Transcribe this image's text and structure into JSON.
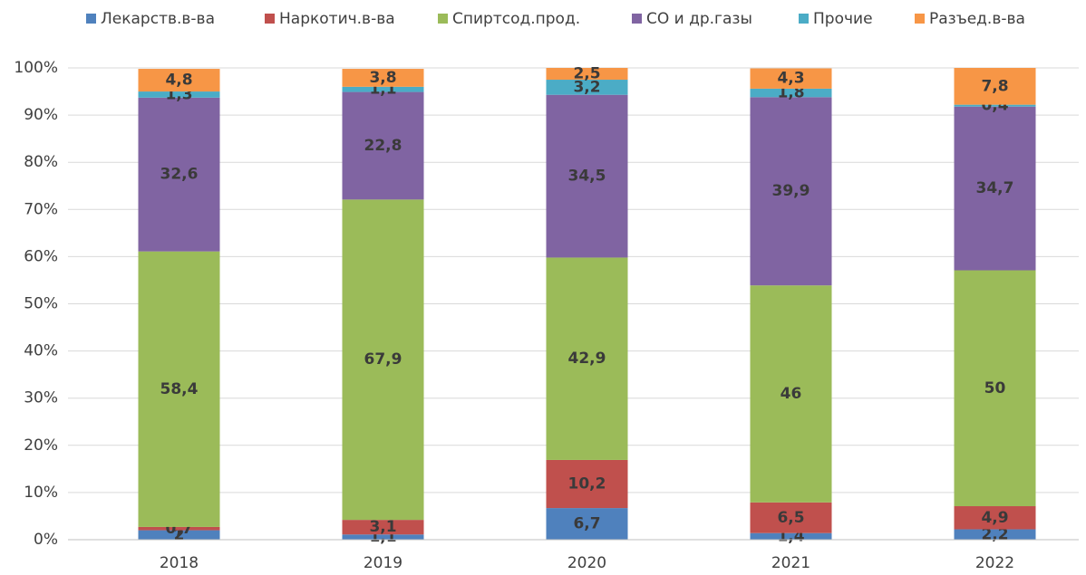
{
  "chart_data": {
    "type": "stacked_bar",
    "categories": [
      "2018",
      "2019",
      "2020",
      "2021",
      "2022"
    ],
    "series": [
      {
        "name": "Лекарств.в-ва",
        "color": "#4f81bd",
        "values": [
          2,
          1.1,
          6.7,
          1.4,
          2.2
        ],
        "value_labels": [
          "2",
          "1,1",
          "6,7",
          "1,4",
          "2,2"
        ]
      },
      {
        "name": "Наркотич.в-ва",
        "color": "#c0504d",
        "values": [
          0.7,
          3.1,
          10.2,
          6.5,
          4.9
        ],
        "value_labels": [
          "0,7",
          "3,1",
          "10,2",
          "6,5",
          "4,9"
        ]
      },
      {
        "name": "Спиртсод.прод.",
        "color": "#9bbb59",
        "values": [
          58.4,
          67.9,
          42.9,
          46,
          50
        ],
        "value_labels": [
          "58,4",
          "67,9",
          "42,9",
          "46",
          "50"
        ]
      },
      {
        "name": "СО и др.газы",
        "color": "#8064a2",
        "values": [
          32.6,
          22.8,
          34.5,
          39.9,
          34.7
        ],
        "value_labels": [
          "32,6",
          "22,8",
          "34,5",
          "39,9",
          "34,7"
        ]
      },
      {
        "name": "Прочие",
        "color": "#4bacc6",
        "values": [
          1.3,
          1.1,
          3.2,
          1.8,
          0.4
        ],
        "value_labels": [
          "1,3",
          "1,1",
          "3,2",
          "1,8",
          "0,4"
        ]
      },
      {
        "name": "Разъед.в-ва",
        "color": "#f79646",
        "values": [
          4.8,
          3.8,
          2.5,
          4.3,
          7.8
        ],
        "value_labels": [
          "4,8",
          "3,8",
          "2,5",
          "4,3",
          "7,8"
        ]
      }
    ],
    "ylim": [
      0,
      100
    ],
    "yticks": [
      {
        "value": 0,
        "label": "0%"
      },
      {
        "value": 10,
        "label": "10%"
      },
      {
        "value": 20,
        "label": "20%"
      },
      {
        "value": 30,
        "label": "30%"
      },
      {
        "value": 40,
        "label": "40%"
      },
      {
        "value": 50,
        "label": "50%"
      },
      {
        "value": 60,
        "label": "60%"
      },
      {
        "value": 70,
        "label": "70%"
      },
      {
        "value": 80,
        "label": "80%"
      },
      {
        "value": 90,
        "label": "90%"
      },
      {
        "value": 100,
        "label": "100%"
      }
    ],
    "grid": true,
    "legend": "top"
  }
}
